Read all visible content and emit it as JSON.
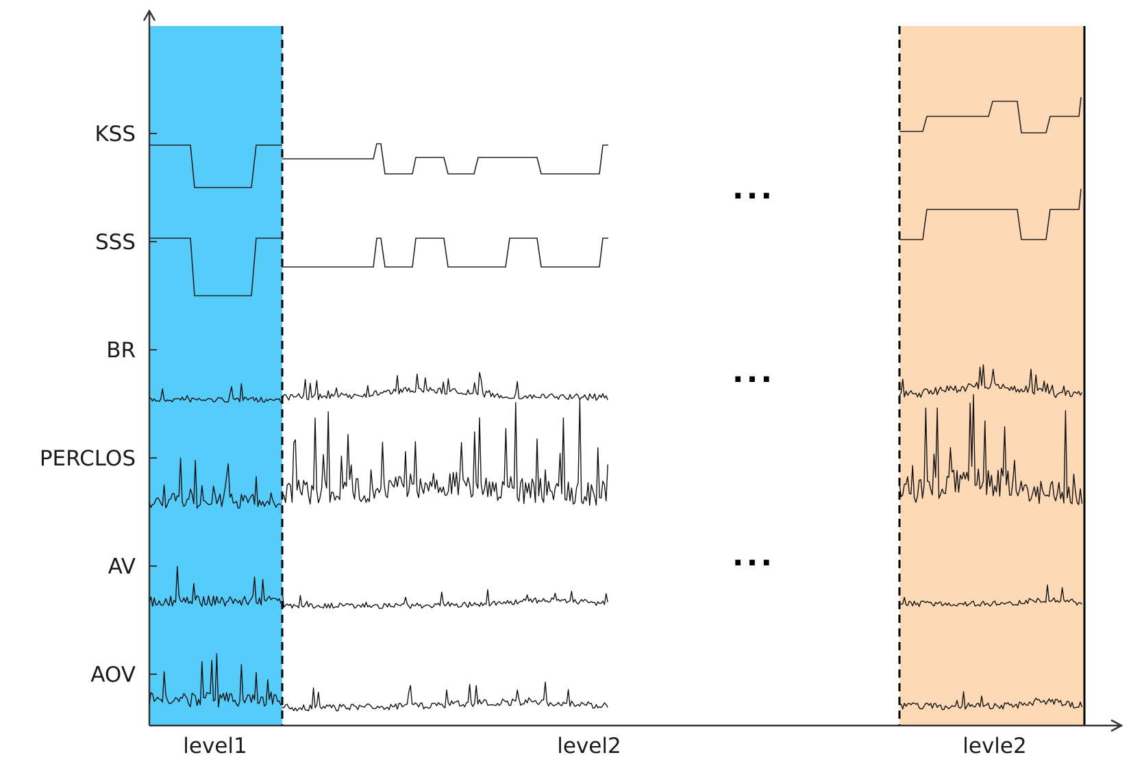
{
  "colors": {
    "level1_band": "#56CCFB",
    "levle2_band": "#FDD9B5",
    "axis": "#333333",
    "trace": "#111111"
  },
  "rows": [
    {
      "label": "KSS"
    },
    {
      "label": "SSS"
    },
    {
      "label": "BR"
    },
    {
      "label": "PERCLOS"
    },
    {
      "label": "AV"
    },
    {
      "label": "AOV"
    }
  ],
  "sections": [
    {
      "label": "level1"
    },
    {
      "label": "level2"
    },
    {
      "label": "levle2"
    }
  ],
  "ellipsis": "..."
}
